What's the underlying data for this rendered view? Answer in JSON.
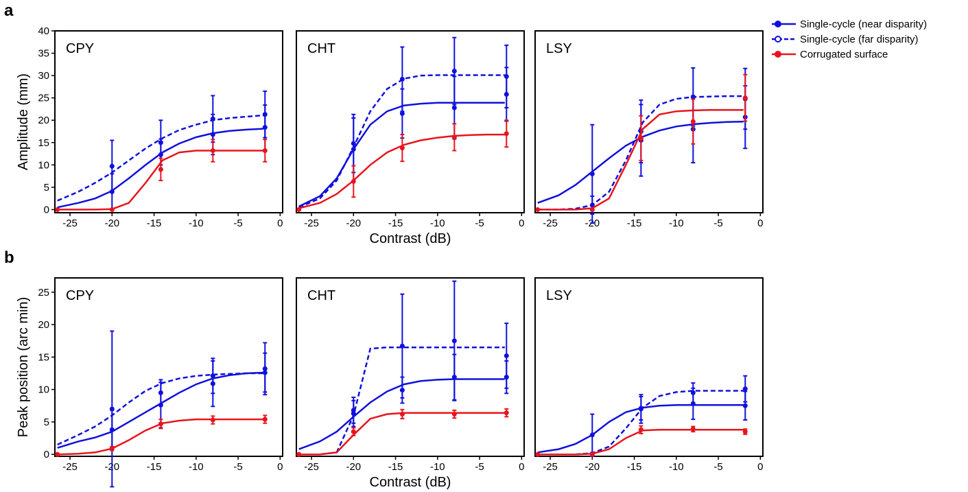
{
  "chart_data": [
    {
      "type": "line",
      "panel_label": "a",
      "ylabel": "Amplitude (mm)",
      "title": "CPY",
      "x": [
        -26.5,
        -20,
        -14.2,
        -8,
        -1.8
      ],
      "fit_x": [
        -26.5,
        -24,
        -22,
        -20,
        -18,
        -16,
        -14,
        -12,
        -10,
        -8,
        -6,
        -4,
        -2
      ],
      "xlim": [
        -26.8,
        0.3
      ],
      "xticks": [
        -25,
        -20,
        -15,
        -10,
        -5,
        0
      ],
      "ylim": [
        -0.7,
        40
      ],
      "yticks": [
        0,
        5,
        10,
        15,
        20,
        25,
        30,
        35,
        40
      ],
      "series": [
        {
          "name": "Single-cycle (near disparity)",
          "color": "#1010dd",
          "dash": false,
          "values": [
            null,
            4,
            12.3,
            16.8,
            18.4
          ],
          "errors": [
            null,
            4,
            3.5,
            4.5,
            5
          ],
          "fit": [
            0.5,
            1.5,
            2.5,
            4.2,
            7,
            10,
            12.8,
            14.8,
            16.2,
            17.1,
            17.6,
            17.9,
            18.1
          ]
        },
        {
          "name": "Single-cycle (far disparity)",
          "color": "#1010dd",
          "dash": true,
          "values": [
            null,
            9.7,
            15,
            20.3,
            21.3
          ],
          "errors": [
            null,
            5.8,
            5,
            5.2,
            5.2
          ],
          "fit": [
            2,
            4,
            6,
            8.3,
            11,
            13.7,
            16,
            17.8,
            19,
            20,
            20.5,
            20.8,
            21.1
          ]
        },
        {
          "name": "Corrugated surface",
          "color": "#e8141c",
          "dash": false,
          "values": [
            0,
            0,
            9,
            13.2,
            13.2
          ],
          "errors": [
            0,
            0,
            2.5,
            2.5,
            2.5
          ],
          "fit": [
            0,
            0,
            0,
            0.1,
            1.5,
            6,
            11,
            12.8,
            13.2,
            13.2,
            13.2,
            13.2,
            13.2
          ]
        }
      ]
    },
    {
      "type": "line",
      "title": "CHT",
      "xlabel": "Contrast (dB)",
      "x": [
        -26.5,
        -20,
        -14.2,
        -8,
        -1.8
      ],
      "fit_x": [
        -26.5,
        -24,
        -22,
        -20,
        -18,
        -16,
        -14,
        -12,
        -10,
        -8,
        -6,
        -4,
        -2
      ],
      "xlim": [
        -26.8,
        0.3
      ],
      "xticks": [
        -25,
        -20,
        -15,
        -10,
        -5,
        0
      ],
      "ylim": [
        -0.7,
        40
      ],
      "series": [
        {
          "color": "#1010dd",
          "dash": false,
          "values": [
            null,
            13.5,
            21.5,
            22.8,
            25.8
          ],
          "errors": [
            null,
            7,
            5.5,
            7,
            6
          ],
          "fit": [
            0.7,
            3,
            7,
            13.5,
            19,
            22,
            23.3,
            23.7,
            23.9,
            23.9,
            23.9,
            23.9,
            23.9
          ]
        },
        {
          "color": "#1010dd",
          "dash": true,
          "values": [
            null,
            14.8,
            29.2,
            31,
            29.8
          ],
          "errors": [
            null,
            6.5,
            7.2,
            7.5,
            7
          ],
          "fit": [
            0.5,
            2.5,
            6.5,
            14,
            22,
            27,
            29.3,
            30,
            30.1,
            30.1,
            30.1,
            30.1,
            30.1
          ]
        },
        {
          "color": "#e8141c",
          "dash": false,
          "values": [
            0,
            6.3,
            13.8,
            16.2,
            17
          ],
          "errors": [
            0,
            3.5,
            3,
            3,
            3
          ],
          "fit": [
            0.3,
            1.5,
            3.5,
            6.5,
            10,
            12.8,
            14.5,
            15.5,
            16.1,
            16.5,
            16.7,
            16.8,
            16.8
          ]
        }
      ]
    },
    {
      "type": "line",
      "title": "LSY",
      "x": [
        -26.5,
        -20,
        -14.2,
        -8,
        -1.8
      ],
      "fit_x": [
        -26.5,
        -24,
        -22,
        -20,
        -18,
        -16,
        -14,
        -12,
        -10,
        -8,
        -6,
        -4,
        -2
      ],
      "xlim": [
        -26.8,
        0.3
      ],
      "xticks": [
        -25,
        -20,
        -15,
        -10,
        -5,
        0
      ],
      "ylim": [
        -0.7,
        40
      ],
      "series": [
        {
          "color": "#1010dd",
          "dash": false,
          "values": [
            null,
            8,
            15.5,
            18,
            20.7
          ],
          "errors": [
            null,
            11,
            8,
            7.5,
            7
          ],
          "fit": [
            1.5,
            3.2,
            5.5,
            8.5,
            11.5,
            14.3,
            16.3,
            17.7,
            18.6,
            19.1,
            19.4,
            19.6,
            19.7
          ]
        },
        {
          "color": "#1010dd",
          "dash": true,
          "values": [
            null,
            1,
            17.5,
            25.2,
            24.8
          ],
          "errors": [
            null,
            2,
            7,
            6.5,
            6.8
          ],
          "fit": [
            0,
            0,
            0.2,
            1,
            4,
            11,
            19.5,
            23.5,
            24.8,
            25.2,
            25.3,
            25.4,
            25.4
          ]
        },
        {
          "color": "#e8141c",
          "dash": false,
          "values": [
            0,
            0,
            16,
            19.7,
            25
          ],
          "errors": [
            0,
            0,
            5,
            5,
            5.2
          ],
          "fit": [
            0,
            0,
            0,
            0.3,
            2.5,
            10,
            18,
            21.3,
            22,
            22.2,
            22.3,
            22.3,
            22.3
          ]
        }
      ]
    },
    {
      "type": "line",
      "panel_label": "b",
      "ylabel": "Peak position (arc min)",
      "title": "CPY",
      "x": [
        -26.5,
        -20,
        -14.2,
        -8,
        -1.8
      ],
      "fit_x": [
        -26.5,
        -24,
        -22,
        -20,
        -18,
        -16,
        -14,
        -12,
        -10,
        -8,
        -6,
        -4,
        -2
      ],
      "xlim": [
        -26.8,
        0.3
      ],
      "xticks": [
        -25,
        -20,
        -15,
        -10,
        -5,
        0
      ],
      "ylim": [
        -0.3,
        27.2
      ],
      "yticks": [
        0,
        5,
        10,
        15,
        20,
        25
      ],
      "series": [
        {
          "color": "#1010dd",
          "dash": false,
          "values": [
            null,
            3.8,
            7.6,
            10.9,
            12.6
          ],
          "errors": [
            null,
            3,
            3.5,
            3.5,
            3
          ],
          "fit": [
            1,
            2,
            2.6,
            3.5,
            5,
            6.5,
            8,
            9.5,
            10.8,
            11.7,
            12.2,
            12.5,
            12.6
          ]
        },
        {
          "color": "#1010dd",
          "dash": true,
          "values": [
            null,
            7,
            9.5,
            12.1,
            13.2
          ],
          "errors": [
            null,
            12,
            2,
            2.7,
            4
          ],
          "fit": [
            1.5,
            3,
            4.3,
            6,
            8,
            9.8,
            11,
            11.7,
            12.1,
            12.3,
            12.4,
            12.5,
            12.5
          ]
        },
        {
          "color": "#e8141c",
          "dash": false,
          "values": [
            0,
            0.9,
            4.7,
            5.3,
            5.4
          ],
          "errors": [
            0,
            0.3,
            0.7,
            0.6,
            0.6
          ],
          "fit": [
            0,
            0.1,
            0.3,
            0.9,
            2.2,
            3.7,
            4.8,
            5.2,
            5.4,
            5.4,
            5.4,
            5.4,
            5.4
          ]
        }
      ]
    },
    {
      "type": "line",
      "title": "CHT",
      "xlabel": "Contrast (dB)",
      "x": [
        -26.5,
        -20,
        -14.2,
        -8,
        -1.8
      ],
      "fit_x": [
        -26.5,
        -24,
        -22,
        -20,
        -18,
        -16,
        -14,
        -12,
        -10,
        -8,
        -6,
        -4,
        -2
      ],
      "xlim": [
        -26.8,
        0.3
      ],
      "xticks": [
        -25,
        -20,
        -15,
        -10,
        -5,
        0
      ],
      "ylim": [
        -0.3,
        27.2
      ],
      "series": [
        {
          "color": "#1010dd",
          "dash": false,
          "values": [
            null,
            6.3,
            9.9,
            11.9,
            11.9
          ],
          "errors": [
            null,
            2,
            2,
            3.5,
            2.5
          ],
          "fit": [
            0.8,
            2,
            3.5,
            5.8,
            8,
            9.7,
            10.8,
            11.3,
            11.5,
            11.6,
            11.6,
            11.6,
            11.6
          ]
        },
        {
          "color": "#1010dd",
          "dash": true,
          "values": [
            null,
            6.8,
            16.7,
            17.5,
            15.2
          ],
          "errors": [
            null,
            2,
            8,
            9.2,
            5
          ],
          "fit": [
            0,
            0,
            0.3,
            6,
            16.3,
            16.5,
            16.5,
            16.5,
            16.5,
            16.5,
            16.5,
            16.5,
            16.5
          ]
        },
        {
          "color": "#e8141c",
          "dash": false,
          "values": [
            0,
            3.5,
            6.2,
            6.2,
            6.4
          ],
          "errors": [
            0,
            0.6,
            0.7,
            0.6,
            0.6
          ],
          "fit": [
            0,
            0,
            0.3,
            3,
            5.5,
            6.2,
            6.4,
            6.4,
            6.4,
            6.4,
            6.4,
            6.4,
            6.4
          ]
        }
      ]
    },
    {
      "type": "line",
      "title": "LSY",
      "x": [
        -26.5,
        -20,
        -14.2,
        -8,
        -1.8
      ],
      "fit_x": [
        -26.5,
        -24,
        -22,
        -20,
        -18,
        -16,
        -14,
        -12,
        -10,
        -8,
        -6,
        -4,
        -2
      ],
      "xlim": [
        -26.8,
        0.3
      ],
      "xticks": [
        -25,
        -20,
        -15,
        -10,
        -5,
        0
      ],
      "ylim": [
        -0.3,
        27.2
      ],
      "series": [
        {
          "color": "#1010dd",
          "dash": false,
          "values": [
            null,
            3,
            7,
            7.8,
            7.5
          ],
          "errors": [
            null,
            3.2,
            2.2,
            2.4,
            2.2
          ],
          "fit": [
            0.3,
            0.8,
            1.6,
            3,
            5,
            6.5,
            7.2,
            7.5,
            7.6,
            7.6,
            7.6,
            7.6,
            7.6
          ]
        },
        {
          "color": "#1010dd",
          "dash": true,
          "values": [
            null,
            0,
            7.1,
            9.5,
            10.1
          ],
          "errors": [
            null,
            0.3,
            1.8,
            1.5,
            2
          ],
          "fit": [
            0,
            0,
            0,
            0.2,
            1.2,
            4,
            7.2,
            9,
            9.6,
            9.8,
            9.8,
            9.8,
            9.8
          ]
        },
        {
          "color": "#e8141c",
          "dash": false,
          "values": [
            0,
            0,
            3.8,
            3.9,
            3.5
          ],
          "errors": [
            0,
            0,
            0.6,
            0.4,
            0.4
          ],
          "fit": [
            0,
            0,
            0,
            0.1,
            0.8,
            2.5,
            3.7,
            3.8,
            3.8,
            3.8,
            3.8,
            3.8,
            3.8
          ]
        }
      ]
    }
  ]
}
